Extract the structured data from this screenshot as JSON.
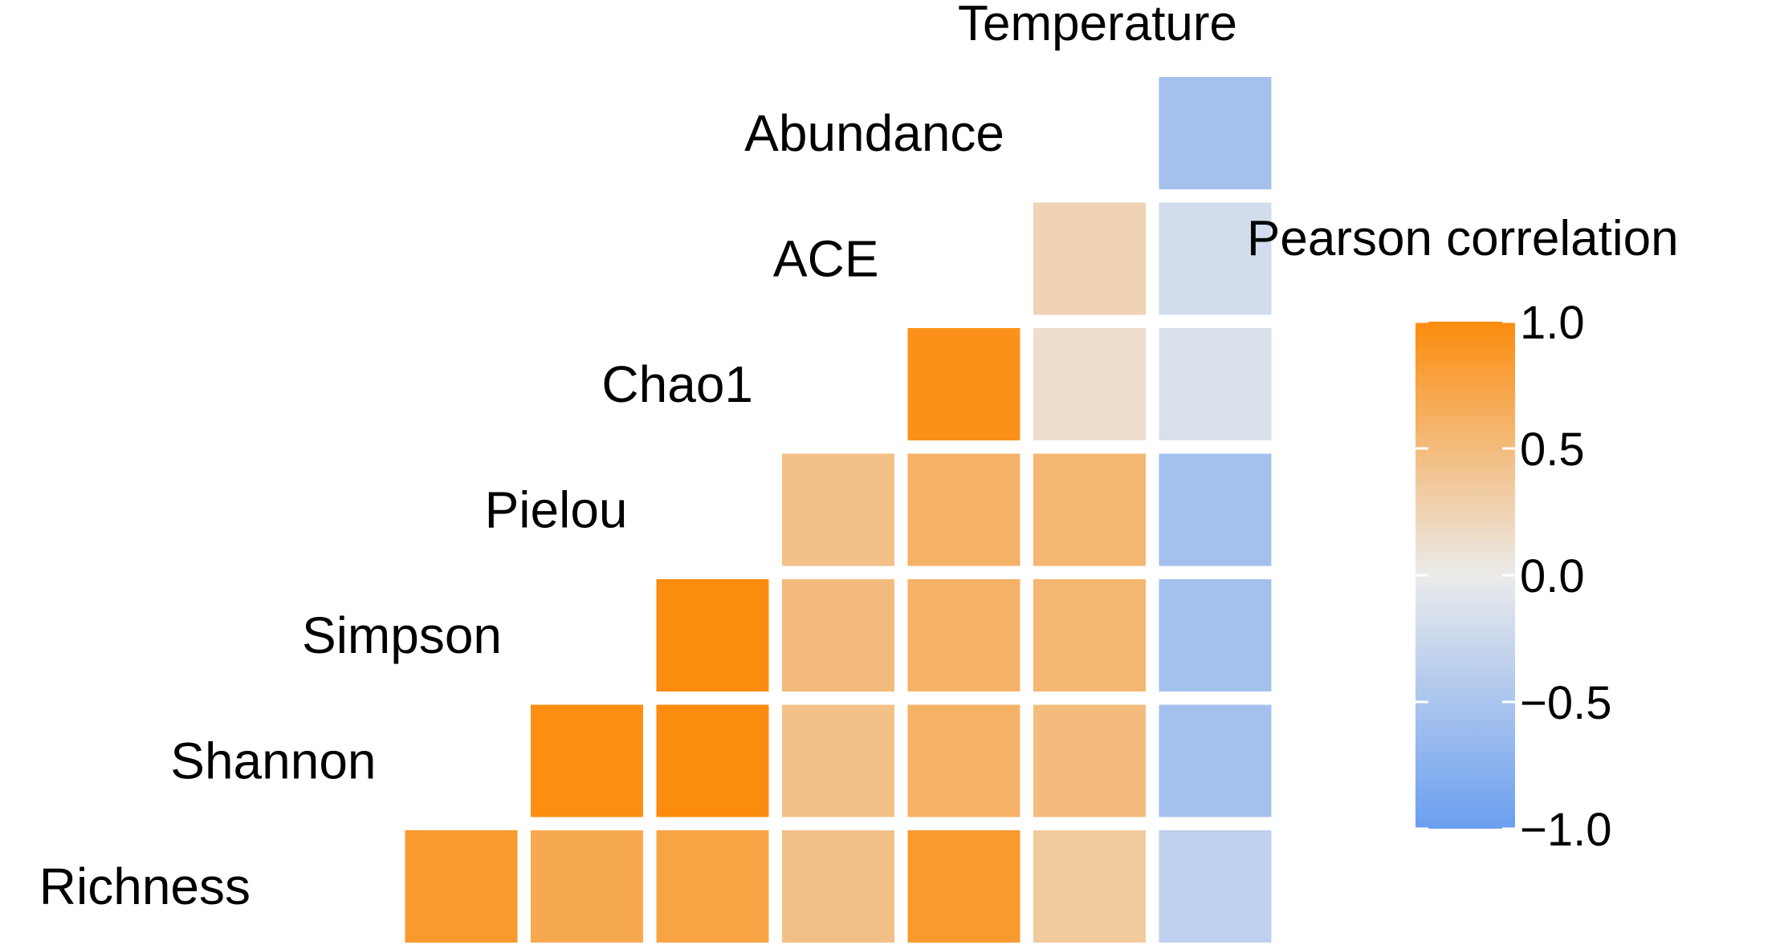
{
  "chart_data": {
    "type": "heatmap",
    "layout": "lower-triangle",
    "variables": [
      "Richness",
      "Shannon",
      "Simpson",
      "Pielou",
      "Chao1",
      "ACE",
      "Abundance",
      "Temperature"
    ],
    "row_labels": [
      "Abundance",
      "ACE",
      "Chao1",
      "Pielou",
      "Simpson",
      "Shannon",
      "Richness"
    ],
    "column_top_label": "Temperature",
    "columns": [
      "Richness",
      "Shannon",
      "Simpson",
      "Pielou",
      "Chao1",
      "ACE",
      "Abundance"
    ],
    "cells": [
      {
        "row": "Abundance",
        "col": "Temperature",
        "value": -0.55
      },
      {
        "row": "ACE",
        "col": "Abundance",
        "value": 0.25
      },
      {
        "row": "ACE",
        "col": "Temperature",
        "value": -0.2
      },
      {
        "row": "Chao1",
        "col": "ACE",
        "value": 0.95
      },
      {
        "row": "Chao1",
        "col": "Abundance",
        "value": 0.15
      },
      {
        "row": "Chao1",
        "col": "Temperature",
        "value": -0.15
      },
      {
        "row": "Pielou",
        "col": "Chao1",
        "value": 0.45
      },
      {
        "row": "Pielou",
        "col": "ACE",
        "value": 0.6
      },
      {
        "row": "Pielou",
        "col": "Abundance",
        "value": 0.55
      },
      {
        "row": "Pielou",
        "col": "Temperature",
        "value": -0.55
      },
      {
        "row": "Simpson",
        "col": "Pielou",
        "value": 1.0
      },
      {
        "row": "Simpson",
        "col": "Chao1",
        "value": 0.5
      },
      {
        "row": "Simpson",
        "col": "ACE",
        "value": 0.6
      },
      {
        "row": "Simpson",
        "col": "Abundance",
        "value": 0.55
      },
      {
        "row": "Simpson",
        "col": "Temperature",
        "value": -0.55
      },
      {
        "row": "Shannon",
        "col": "Simpson",
        "value": 0.98
      },
      {
        "row": "Shannon",
        "col": "Pielou",
        "value": 1.0
      },
      {
        "row": "Shannon",
        "col": "Chao1",
        "value": 0.45
      },
      {
        "row": "Shannon",
        "col": "ACE",
        "value": 0.6
      },
      {
        "row": "Shannon",
        "col": "Abundance",
        "value": 0.5
      },
      {
        "row": "Shannon",
        "col": "Temperature",
        "value": -0.55
      },
      {
        "row": "Richness",
        "col": "Shannon",
        "value": 0.85
      },
      {
        "row": "Richness",
        "col": "Simpson",
        "value": 0.7
      },
      {
        "row": "Richness",
        "col": "Pielou",
        "value": 0.75
      },
      {
        "row": "Richness",
        "col": "Chao1",
        "value": 0.45
      },
      {
        "row": "Richness",
        "col": "ACE",
        "value": 0.85
      },
      {
        "row": "Richness",
        "col": "Abundance",
        "value": 0.35
      },
      {
        "row": "Richness",
        "col": "Temperature",
        "value": -0.35
      }
    ],
    "legend": {
      "title": "Pearson correlation",
      "ticks": [
        "1.0",
        "0.5",
        "0.0",
        "−0.5",
        "−1.0"
      ],
      "min": -1.0,
      "max": 1.0,
      "colors": {
        "low": "#6a9ff0",
        "mid": "#ebebeb",
        "high": "#fc8c0d"
      },
      "placement": "right"
    }
  }
}
